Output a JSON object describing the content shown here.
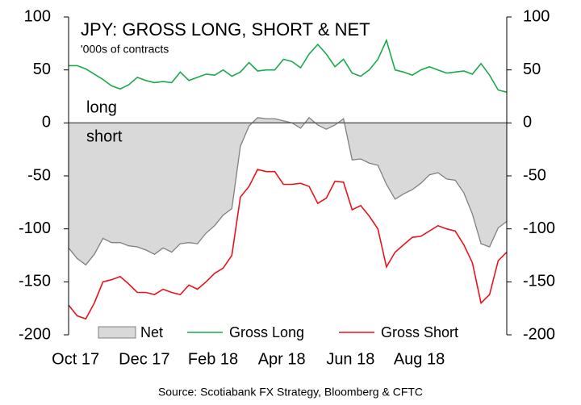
{
  "chart_data": {
    "type": "line",
    "title": "JPY: GROSS LONG, SHORT & NET",
    "subtitle": "'000s of contracts",
    "annotations": [
      "long",
      "short"
    ],
    "source": "Source: Scotiabank FX Strategy, Bloomberg & CFTC",
    "categories": [
      null,
      "Oct 17",
      null,
      null,
      null,
      null,
      null,
      null,
      null,
      "Dec 17",
      null,
      null,
      null,
      null,
      null,
      null,
      null,
      "Feb 18",
      null,
      null,
      null,
      null,
      null,
      null,
      null,
      "Apr 18",
      null,
      null,
      null,
      null,
      null,
      null,
      null,
      "Jun 18",
      null,
      null,
      null,
      null,
      null,
      null,
      null,
      "Aug 18",
      null,
      null,
      null,
      null,
      null,
      null,
      null,
      null,
      null,
      null
    ],
    "series": [
      {
        "name": "Net",
        "color": "#808080",
        "fill": "#d9d9d9",
        "area": true,
        "values": [
          -118,
          -128,
          -134,
          -124,
          -109,
          -113,
          -113,
          -116,
          -117,
          -120,
          -124,
          -118,
          -122,
          -114,
          -113,
          -114,
          -104,
          -97,
          -87,
          -81,
          -22,
          -3,
          5,
          4,
          4,
          2,
          0,
          -5,
          5,
          -2,
          -6,
          -2,
          4,
          -35,
          -34,
          -38,
          -40,
          -58,
          -72,
          -67,
          -63,
          -57,
          -49,
          -47,
          -53,
          -54,
          -66,
          -86,
          -114,
          -117,
          -99,
          -93
        ]
      },
      {
        "name": "Gross Long",
        "color": "#1aaa4a",
        "values": [
          54,
          54,
          51,
          46,
          41,
          35,
          32,
          36,
          43,
          40,
          38,
          39,
          38,
          48,
          40,
          43,
          46,
          45,
          50,
          44,
          48,
          57,
          49,
          50,
          50,
          60,
          58,
          52,
          65,
          74,
          65,
          53,
          60,
          47,
          44,
          50,
          60,
          78,
          50,
          48,
          45,
          50,
          53,
          50,
          47,
          48,
          49,
          46,
          56,
          45,
          31,
          29
        ]
      },
      {
        "name": "Gross Short",
        "color": "#e8141b",
        "values": [
          -172,
          -182,
          -185,
          -170,
          -150,
          -148,
          -145,
          -152,
          -160,
          -160,
          -162,
          -157,
          -160,
          -162,
          -153,
          -157,
          -150,
          -142,
          -137,
          -125,
          -70,
          -60,
          -44,
          -46,
          -46,
          -58,
          -58,
          -57,
          -60,
          -76,
          -71,
          -55,
          -56,
          -82,
          -78,
          -88,
          -100,
          -136,
          -122,
          -115,
          -108,
          -107,
          -102,
          -97,
          -100,
          -102,
          -115,
          -132,
          -170,
          -162,
          -130,
          -122
        ]
      }
    ],
    "ylim": [
      -200,
      100
    ],
    "yticks": [
      -200,
      -150,
      -100,
      -50,
      0,
      50,
      100
    ],
    "y2lim": [
      -200,
      100
    ],
    "y2ticks": [
      -200,
      -150,
      -100,
      -50,
      0,
      50,
      100
    ],
    "grid": false,
    "legend": "bottom"
  }
}
